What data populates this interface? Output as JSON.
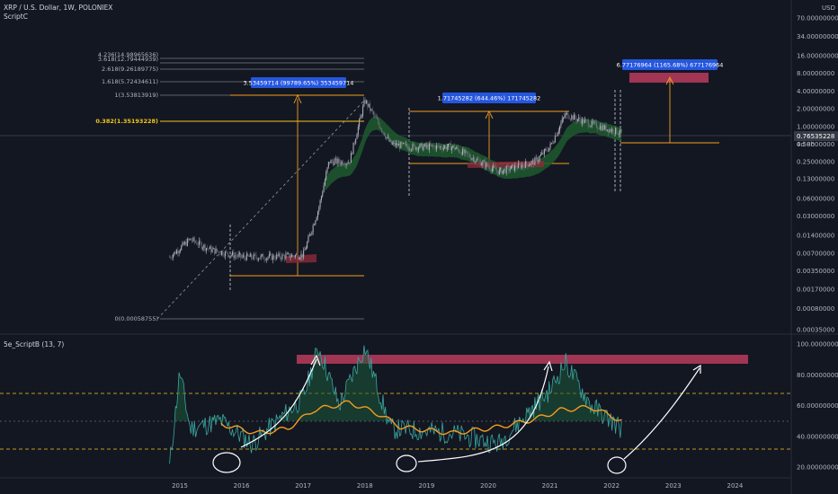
{
  "header": {
    "symbol_line": "XRP / U.S. Dollar, 1W, POLONIEX",
    "script_line": "ScriptC",
    "currency": "USD"
  },
  "oscillator": {
    "label": "5e_ScriptB (13, 7)"
  },
  "price_axis": {
    "labels": [
      "70.00000000",
      "34.00000000",
      "16.00000000",
      "8.00000000",
      "4.00000000",
      "2.00000000",
      "1.00000000",
      "0.50000000",
      "0.25000000",
      "0.13000000",
      "0.06000000",
      "0.03000000",
      "0.01400000",
      "0.00700000",
      "0.00350000",
      "0.00170000",
      "0.00080000",
      "0.00035000"
    ],
    "current_price": "0.76535228",
    "countdown": "4d 8h",
    "current_color": "#363a45"
  },
  "osc_axis": {
    "labels": [
      "100.00000000",
      "80.00000000",
      "60.00000000",
      "40.00000000",
      "20.00000000"
    ]
  },
  "time_axis": {
    "labels": [
      "2015",
      "2016",
      "2017",
      "2018",
      "2019",
      "2020",
      "2021",
      "2022",
      "2023",
      "2024"
    ]
  },
  "fib_levels": [
    {
      "text": "4.236(14.98965636)"
    },
    {
      "text": "3.618(12.79444939)"
    },
    {
      "text": "2.618(9.26189775)"
    },
    {
      "text": "1.618(5.72434611)"
    },
    {
      "text": "1(3.53813919)"
    },
    {
      "text": "0.382(1.35193228)",
      "highlight": true
    },
    {
      "text": "0(0.00058755)"
    }
  ],
  "measure_boxes": [
    {
      "text": "3.53459714 (99789.65%) 353459714"
    },
    {
      "text": "1.71745282 (644.46%) 171745282"
    },
    {
      "text": "6.77176964 (1165.68%) 677176964"
    }
  ],
  "colors": {
    "background": "#131722",
    "orange": "#f59d1d",
    "pink": "#b0385a",
    "green": "#1e5a2e",
    "teal": "#26a69a",
    "box": "#2962ff",
    "grid": "#2a2e39"
  },
  "chart_data": [
    {
      "type": "candlestick",
      "title": "XRP / U.S. Dollar, 1W, POLONIEX",
      "y_scale": "log",
      "ylim": [
        0.00035,
        70
      ],
      "x": [
        "2015",
        "2016",
        "2017",
        "2018",
        "2019",
        "2020",
        "2021",
        "2022",
        "2023",
        "2024"
      ],
      "approx_close_path": [
        {
          "x": "2014-11",
          "y": 0.006
        },
        {
          "x": "2015-03",
          "y": 0.012
        },
        {
          "x": "2015-07",
          "y": 0.008
        },
        {
          "x": "2016-01",
          "y": 0.006
        },
        {
          "x": "2016-07",
          "y": 0.006
        },
        {
          "x": "2017-01",
          "y": 0.0065
        },
        {
          "x": "2017-04",
          "y": 0.04
        },
        {
          "x": "2017-06",
          "y": 0.25
        },
        {
          "x": "2017-10",
          "y": 0.25
        },
        {
          "x": "2018-01",
          "y": 2.8
        },
        {
          "x": "2018-06",
          "y": 0.5
        },
        {
          "x": "2018-10",
          "y": 0.45
        },
        {
          "x": "2019-06",
          "y": 0.45
        },
        {
          "x": "2020-03",
          "y": 0.17
        },
        {
          "x": "2020-10",
          "y": 0.25
        },
        {
          "x": "2021-01",
          "y": 0.45
        },
        {
          "x": "2021-04",
          "y": 1.6
        },
        {
          "x": "2021-09",
          "y": 1.1
        },
        {
          "x": "2022-03",
          "y": 0.77
        }
      ]
    },
    {
      "type": "line",
      "title": "5e_ScriptB (13, 7)",
      "ylim": [
        15,
        100
      ],
      "series": [
        {
          "values_by_year": [
            {
              "x": "2014-11",
              "y": 20
            },
            {
              "x": "2015-01",
              "y": 82
            },
            {
              "x": "2015-03",
              "y": 45
            },
            {
              "x": "2015-09",
              "y": 50
            },
            {
              "x": "2016-03",
              "y": 35
            },
            {
              "x": "2017-01",
              "y": 65
            },
            {
              "x": "2017-04",
              "y": 98
            },
            {
              "x": "2017-08",
              "y": 60
            },
            {
              "x": "2018-01",
              "y": 98
            },
            {
              "x": "2018-06",
              "y": 45
            },
            {
              "x": "2019-06",
              "y": 42
            },
            {
              "x": "2020-03",
              "y": 35
            },
            {
              "x": "2021-01",
              "y": 70
            },
            {
              "x": "2021-04",
              "y": 88
            },
            {
              "x": "2021-09",
              "y": 60
            },
            {
              "x": "2022-03",
              "y": 45
            }
          ]
        },
        {
          "values_by_year": [
            {
              "x": "2015-09",
              "y": 48
            },
            {
              "x": "2016-04",
              "y": 42
            },
            {
              "x": "2016-10",
              "y": 45
            },
            {
              "x": "2017-03",
              "y": 57
            },
            {
              "x": "2017-10",
              "y": 62
            },
            {
              "x": "2018-04",
              "y": 54
            },
            {
              "x": "2018-08",
              "y": 46
            },
            {
              "x": "2019-06",
              "y": 42
            },
            {
              "x": "2020-03",
              "y": 46
            },
            {
              "x": "2020-10",
              "y": 51
            },
            {
              "x": "2021-03",
              "y": 57
            },
            {
              "x": "2021-09",
              "y": 59
            },
            {
              "x": "2022-03",
              "y": 50
            }
          ]
        }
      ]
    }
  ]
}
